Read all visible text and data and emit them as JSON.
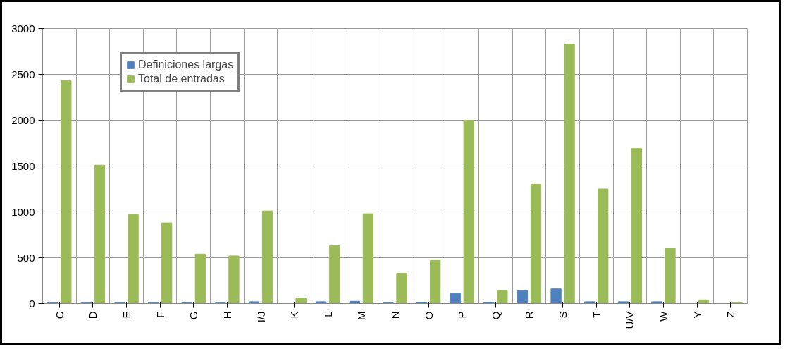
{
  "chart_data": {
    "type": "bar",
    "categories": [
      "C",
      "D",
      "E",
      "F",
      "G",
      "H",
      "I/J",
      "K",
      "L",
      "M",
      "N",
      "O",
      "P",
      "Q",
      "R",
      "S",
      "T",
      "U/V",
      "W",
      "Y",
      "Z"
    ],
    "series": [
      {
        "name": "Definiciones largas",
        "color": "#4f81bd",
        "values": [
          10,
          10,
          10,
          10,
          10,
          10,
          20,
          null,
          20,
          25,
          10,
          15,
          110,
          15,
          140,
          160,
          20,
          20,
          20,
          null,
          null
        ]
      },
      {
        "name": "Total de entradas",
        "color": "#9bbb59",
        "values": [
          2430,
          1510,
          970,
          880,
          540,
          520,
          1010,
          60,
          630,
          980,
          330,
          470,
          2000,
          140,
          1300,
          2830,
          1250,
          1690,
          600,
          40,
          10
        ]
      }
    ],
    "ylim": [
      0,
      3000
    ],
    "yticks": [
      0,
      500,
      1000,
      1500,
      2000,
      2500,
      3000
    ],
    "grid": true,
    "legend": "top left"
  }
}
